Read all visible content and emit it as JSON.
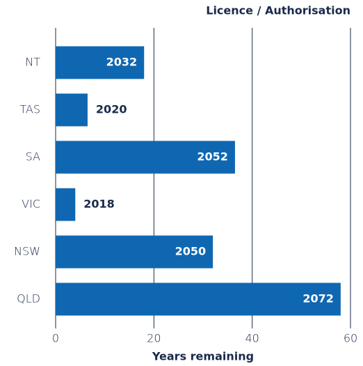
{
  "chart_data": {
    "type": "hbar",
    "title": "Licence / Authorisation",
    "xlabel": "Years remaining",
    "categories": [
      "NT",
      "TAS",
      "SA",
      "VIC",
      "NSW",
      "QLD"
    ],
    "values": [
      18,
      6.5,
      36.5,
      4,
      32,
      58
    ],
    "bar_labels": [
      "2032",
      "2020",
      "2052",
      "2018",
      "2050",
      "2072"
    ],
    "color": "#0f67b1",
    "xlim": [
      0,
      60
    ],
    "xticks": [
      0,
      20,
      40,
      60
    ],
    "grid": true
  }
}
